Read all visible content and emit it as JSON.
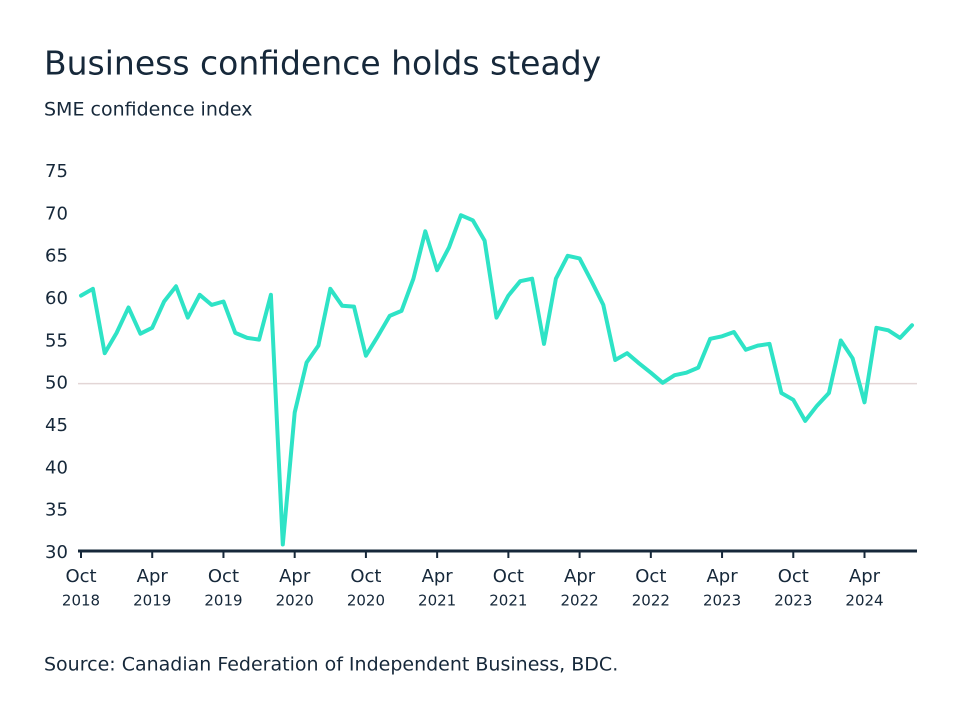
{
  "chart_data": {
    "type": "line",
    "title": "Business confidence holds steady",
    "subtitle": "SME confidence index",
    "source": "Source: Canadian Federation of Independent Business, BDC.",
    "categories": [
      {
        "month": "Oct",
        "year": "2018"
      },
      null,
      null,
      null,
      null,
      null,
      {
        "month": "Apr",
        "year": "2019"
      },
      null,
      null,
      null,
      null,
      null,
      {
        "month": "Oct",
        "year": "2019"
      },
      null,
      null,
      null,
      null,
      null,
      {
        "month": "Apr",
        "year": "2020"
      },
      null,
      null,
      null,
      null,
      null,
      {
        "month": "Oct",
        "year": "2020"
      },
      null,
      null,
      null,
      null,
      null,
      {
        "month": "Apr",
        "year": "2021"
      },
      null,
      null,
      null,
      null,
      null,
      {
        "month": "Oct",
        "year": "2021"
      },
      null,
      null,
      null,
      null,
      null,
      {
        "month": "Apr",
        "year": "2022"
      },
      null,
      null,
      null,
      null,
      null,
      {
        "month": "Oct",
        "year": "2022"
      },
      null,
      null,
      null,
      null,
      null,
      {
        "month": "Apr",
        "year": "2023"
      },
      null,
      null,
      null,
      null,
      null,
      {
        "month": "Oct",
        "year": "2023"
      },
      null,
      null,
      null,
      null,
      null,
      {
        "month": "Apr",
        "year": "2024"
      },
      null,
      null,
      null,
      null
    ],
    "values": [
      60.4,
      61.2,
      53.6,
      56,
      59,
      55.9,
      56.6,
      59.7,
      61.5,
      57.8,
      60.5,
      59.3,
      59.7,
      56,
      55.4,
      55.2,
      60.5,
      31,
      46.6,
      52.5,
      54.5,
      61.2,
      59.2,
      59.1,
      53.3,
      55.6,
      58,
      58.6,
      62.4,
      68,
      63.4,
      66.1,
      69.9,
      69.3,
      66.9,
      57.8,
      60.4,
      62.1,
      62.4,
      54.7,
      62.4,
      65.1,
      64.8,
      62.1,
      59.3,
      52.8,
      53.6,
      52.4,
      51.3,
      50.1,
      51,
      51.3,
      51.9,
      55.3,
      55.6,
      56.1,
      54,
      54.5,
      54.7,
      48.9,
      48.1,
      45.6,
      47.4,
      48.9,
      55.1,
      53,
      47.8,
      56.6,
      56.3,
      55.4,
      56.9
    ],
    "color": "#2ee3c6",
    "reference_line": 50,
    "reference_color": "#e3d6d6",
    "axis_color": "#16283a",
    "ylim": [
      30,
      75
    ],
    "yticks": [
      30,
      35,
      40,
      45,
      50,
      55,
      60,
      65,
      70,
      75
    ]
  }
}
